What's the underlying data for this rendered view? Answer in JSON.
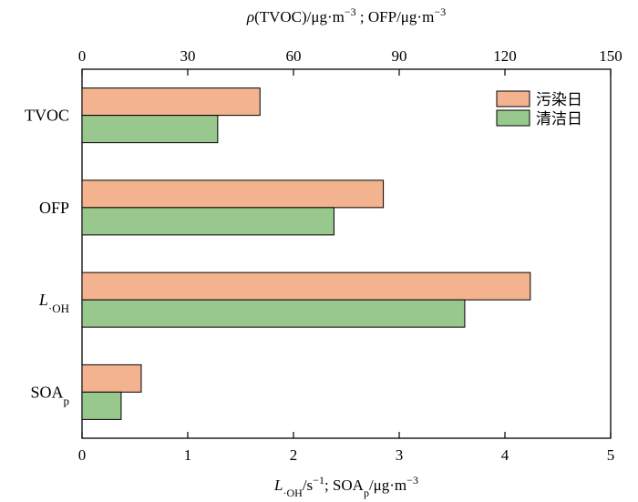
{
  "chart_data": {
    "type": "bar",
    "orientation": "horizontal",
    "categories": [
      "TVOC",
      "OFP",
      "L·OH",
      "SOAp"
    ],
    "series": [
      {
        "name": "污染日",
        "color": "#f4b38f",
        "values": [
          50.5,
          85.5,
          4.24,
          0.56
        ]
      },
      {
        "name": "清洁日",
        "color": "#99c88f",
        "values": [
          38.5,
          71.5,
          3.62,
          0.37
        ]
      }
    ],
    "top_axis": {
      "label": "ρ(TVOC)/μg·m⁻³ ; OFP/μg·m⁻³",
      "range": [
        0,
        150
      ],
      "ticks": [
        "0",
        "30",
        "60",
        "90",
        "120",
        "150"
      ],
      "applies_to": [
        "TVOC",
        "OFP"
      ]
    },
    "bottom_axis": {
      "label": "L·OH/s⁻¹; SOAp/μg·m⁻³",
      "range": [
        0,
        5
      ],
      "ticks": [
        "0",
        "1",
        "2",
        "3",
        "4",
        "5"
      ],
      "applies_to": [
        "L·OH",
        "SOAp"
      ]
    },
    "legend_position": "top-right",
    "grid": false
  }
}
